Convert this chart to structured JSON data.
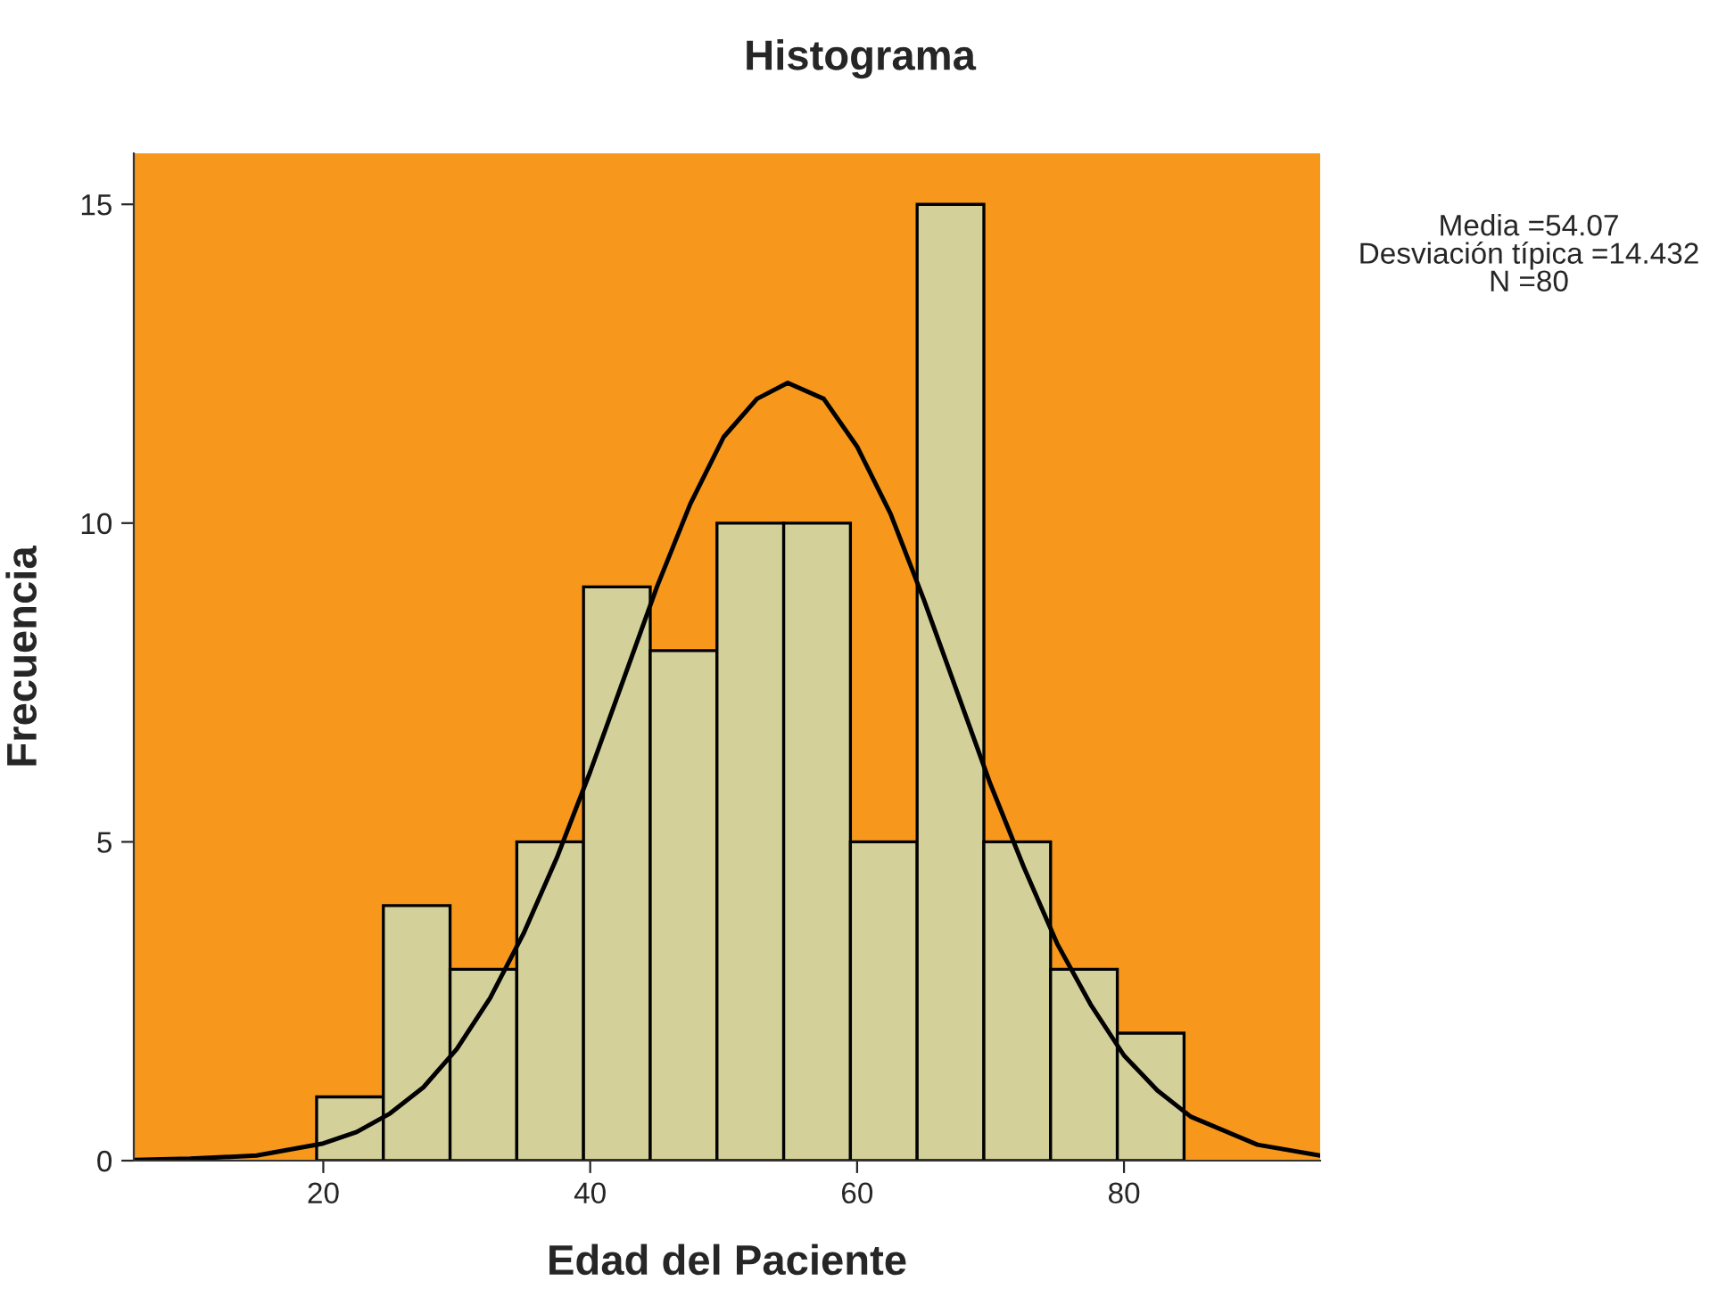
{
  "chart_data": {
    "type": "histogram",
    "title": "Histograma",
    "xlabel": "Edad del Paciente",
    "ylabel": "Frecuencia",
    "bins": [
      19.5,
      24.5,
      29.5,
      34.5,
      39.5,
      44.5,
      49.5,
      54.5,
      59.5,
      64.5,
      69.5,
      74.5,
      79.5,
      84.5
    ],
    "series": [
      {
        "color": "#d4d09a",
        "values": [
          1,
          4,
          3,
          5,
          9,
          8,
          10,
          10,
          5,
          15,
          5,
          3,
          2
        ]
      },
      {
        "type": "line",
        "color": "#000000",
        "x": [
          5.8,
          10,
          15,
          20,
          22.5,
          25,
          27.5,
          30,
          32.5,
          35,
          37.5,
          40,
          42.5,
          45,
          47.5,
          50,
          52.5,
          54.8,
          57.5,
          60,
          62.5,
          65,
          67.5,
          70,
          72.5,
          75,
          77.5,
          80,
          82.5,
          85,
          90,
          94.7
        ],
        "values": [
          0.01,
          0.03,
          0.08,
          0.27,
          0.45,
          0.74,
          1.15,
          1.75,
          2.55,
          3.56,
          4.75,
          6.1,
          7.55,
          9.0,
          10.3,
          11.35,
          11.95,
          12.2,
          11.95,
          11.2,
          10.15,
          8.8,
          7.35,
          5.9,
          4.6,
          3.4,
          2.45,
          1.65,
          1.1,
          0.69,
          0.25,
          0.08
        ]
      }
    ],
    "xlim": [
      5.8,
      94.7
    ],
    "ylim": [
      0,
      15.8
    ],
    "xticks": [
      20,
      40,
      60,
      80
    ],
    "yticks": [
      0,
      5,
      10,
      15
    ],
    "grid": false,
    "legend": false,
    "annotations": [
      "Media =54.07",
      "Desviación típica =14.432",
      "N =80"
    ]
  }
}
